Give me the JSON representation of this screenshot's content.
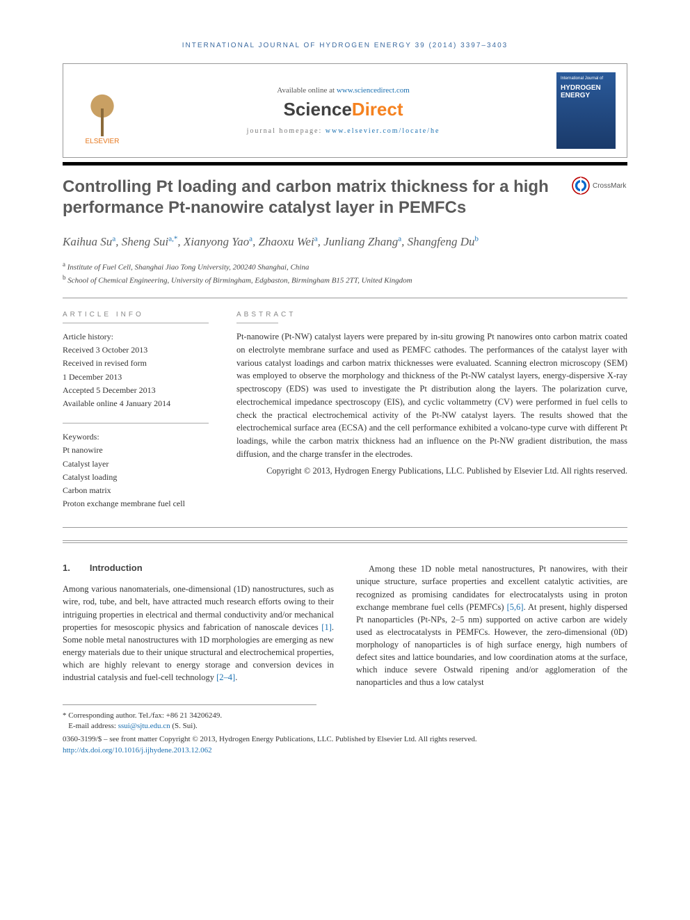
{
  "running_head": "INTERNATIONAL JOURNAL OF HYDROGEN ENERGY 39 (2014) 3397–3403",
  "header": {
    "available_prefix": "Available online at ",
    "available_link": "www.sciencedirect.com",
    "sd_logo_science": "Science",
    "sd_logo_direct": "Direct",
    "homepage_prefix": "journal homepage: ",
    "homepage_link": "www.elsevier.com/locate/he",
    "elsevier_label": "ELSEVIER",
    "cover_top": "International Journal of",
    "cover_title1": "HYDROGEN",
    "cover_title2": "ENERGY"
  },
  "crossmark_label": "CrossMark",
  "title": "Controlling Pt loading and carbon matrix thickness for a high performance Pt-nanowire catalyst layer in PEMFCs",
  "authors_html": "Kaihua Su|a|, Sheng Sui|a,*|, Xianyong Yao|a|, Zhaoxu Wei|a|, Junliang Zhang|a|, Shangfeng Du|b|",
  "authors": [
    {
      "name": "Kaihua Su",
      "sup": "a"
    },
    {
      "name": "Sheng Sui",
      "sup": "a,*"
    },
    {
      "name": "Xianyong Yao",
      "sup": "a"
    },
    {
      "name": "Zhaoxu Wei",
      "sup": "a"
    },
    {
      "name": "Junliang Zhang",
      "sup": "a"
    },
    {
      "name": "Shangfeng Du",
      "sup": "b"
    }
  ],
  "affiliations": [
    {
      "sup": "a",
      "text": "Institute of Fuel Cell, Shanghai Jiao Tong University, 200240 Shanghai, China"
    },
    {
      "sup": "b",
      "text": "School of Chemical Engineering, University of Birmingham, Edgbaston, Birmingham B15 2TT, United Kingdom"
    }
  ],
  "article_info_label": "ARTICLE INFO",
  "abstract_label": "ABSTRACT",
  "history_label": "Article history:",
  "history": [
    "Received 3 October 2013",
    "Received in revised form",
    "1 December 2013",
    "Accepted 5 December 2013",
    "Available online 4 January 2014"
  ],
  "keywords_label": "Keywords:",
  "keywords": [
    "Pt nanowire",
    "Catalyst layer",
    "Catalyst loading",
    "Carbon matrix",
    "Proton exchange membrane fuel cell"
  ],
  "abstract": "Pt-nanowire (Pt-NW) catalyst layers were prepared by in-situ growing Pt nanowires onto carbon matrix coated on electrolyte membrane surface and used as PEMFC cathodes. The performances of the catalyst layer with various catalyst loadings and carbon matrix thicknesses were evaluated. Scanning electron microscopy (SEM) was employed to observe the morphology and thickness of the Pt-NW catalyst layers, energy-dispersive X-ray spectroscopy (EDS) was used to investigate the Pt distribution along the layers. The polarization curve, electrochemical impedance spectroscopy (EIS), and cyclic voltammetry (CV) were performed in fuel cells to check the practical electrochemical activity of the Pt-NW catalyst layers. The results showed that the electrochemical surface area (ECSA) and the cell performance exhibited a volcano-type curve with different Pt loadings, while the carbon matrix thickness had an influence on the Pt-NW gradient distribution, the mass diffusion, and the charge transfer in the electrodes.",
  "abstract_copyright": "Copyright © 2013, Hydrogen Energy Publications, LLC. Published by Elsevier Ltd. All rights reserved.",
  "section1": {
    "num": "1.",
    "title": "Introduction",
    "col1_p1": "Among various nanomaterials, one-dimensional (1D) nanostructures, such as wire, rod, tube, and belt, have attracted much research efforts owing to their intriguing properties in electrical and thermal conductivity and/or mechanical properties for mesoscopic physics and fabrication of nanoscale devices [1]. Some noble metal nanostructures with 1D morphologies are emerging as new energy materials due to their unique structural and electrochemical properties, which are highly relevant to energy storage and conversion devices in industrial catalysis and fuel-cell technology [2–4].",
    "col2_p1": "Among these 1D noble metal nanostructures, Pt nanowires, with their unique structure, surface properties and excellent catalytic activities, are recognized as promising candidates for electrocatalysts using in proton exchange membrane fuel cells (PEMFCs) [5,6]. At present, highly dispersed Pt nanoparticles (Pt-NPs, 2–5 nm) supported on active carbon are widely used as electrocatalysts in PEMFCs. However, the zero-dimensional (0D) morphology of nanoparticles is of high surface energy, high numbers of defect sites and lattice boundaries, and low coordination atoms at the surface, which induce severe Ostwald ripening and/or agglomeration of the nanoparticles and thus a low catalyst"
  },
  "footnotes": {
    "corr": "* Corresponding author. Tel./fax: +86 21 34206249.",
    "email_label": "E-mail address: ",
    "email": "ssui@sjtu.edu.cn",
    "email_suffix": " (S. Sui).",
    "copyright": "0360-3199/$ – see front matter Copyright © 2013, Hydrogen Energy Publications, LLC. Published by Elsevier Ltd. All rights reserved.",
    "doi": "http://dx.doi.org/10.1016/j.ijhydene.2013.12.062"
  },
  "colors": {
    "link": "#1a6fb0",
    "title_gray": "#5a5a5a",
    "orange": "#f58220",
    "elsevier_orange": "#e6781e"
  }
}
